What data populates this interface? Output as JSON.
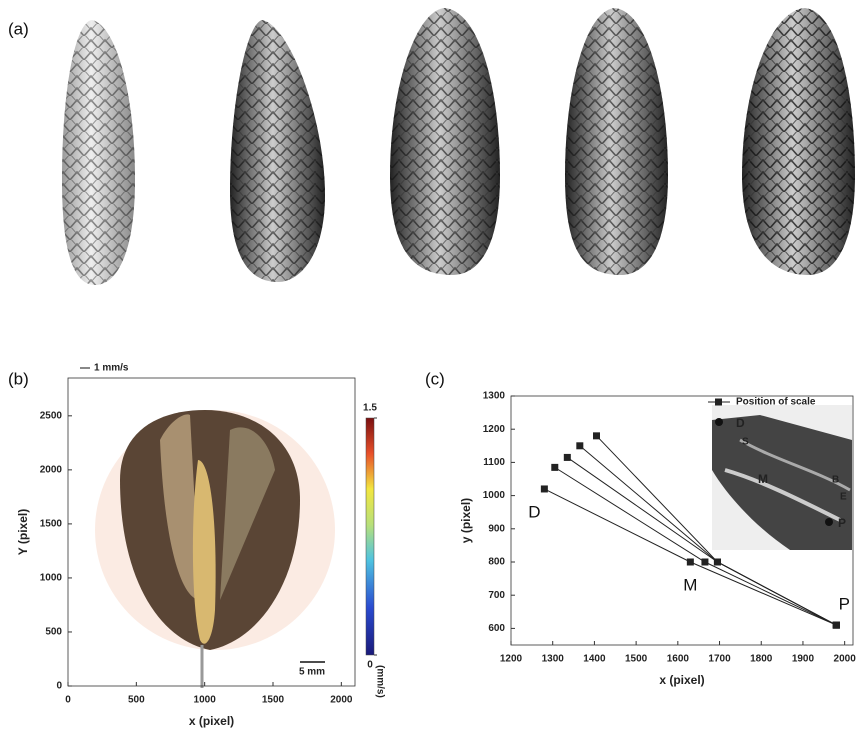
{
  "panel_labels": [
    "(a)",
    "(b)",
    "(c)"
  ],
  "chart_data": [
    {
      "type": "image",
      "xlabel": "x (pixel)",
      "ylabel": "Y (pixel)",
      "xlim": [
        0,
        2100
      ],
      "ylim": [
        0,
        2850
      ],
      "xticks": [
        0,
        500,
        1000,
        1500,
        2000
      ],
      "yticks": [
        0,
        500,
        1000,
        1500,
        2000,
        2500
      ],
      "annotations": [
        "1 mm/s",
        "5 mm"
      ],
      "colorbar": {
        "lim": [
          0,
          1.5
        ],
        "ticks": [
          0,
          1.5
        ],
        "label": "(mm/s)"
      }
    },
    {
      "type": "line",
      "xlabel": "x (pixel)",
      "ylabel": "y (pixel)",
      "xlim": [
        1200,
        2020
      ],
      "ylim": [
        550,
        1300
      ],
      "xticks": [
        1200,
        1300,
        1400,
        1500,
        1600,
        1700,
        1800,
        1900,
        2000
      ],
      "yticks": [
        600,
        700,
        800,
        900,
        1000,
        1100,
        1200,
        1300
      ],
      "legend": "upper right",
      "series": [
        {
          "name": "Position of scale",
          "color": "#222222",
          "lines": [
            {
              "x": [
                1280,
                1630,
                1980
              ],
              "y": [
                1020,
                800,
                610
              ]
            },
            {
              "x": [
                1305,
                1665,
                1980
              ],
              "y": [
                1085,
                800,
                610
              ]
            },
            {
              "x": [
                1335,
                1695,
                1980
              ],
              "y": [
                1115,
                800,
                610
              ]
            },
            {
              "x": [
                1365,
                1695,
                1980
              ],
              "y": [
                1150,
                800,
                610
              ]
            },
            {
              "x": [
                1405,
                1695,
                1980
              ],
              "y": [
                1180,
                800,
                610
              ]
            }
          ]
        }
      ],
      "point_labels": [
        "D",
        "M",
        "P"
      ],
      "inset_labels": [
        "D",
        "S",
        "M",
        "B",
        "E",
        "P"
      ]
    }
  ]
}
